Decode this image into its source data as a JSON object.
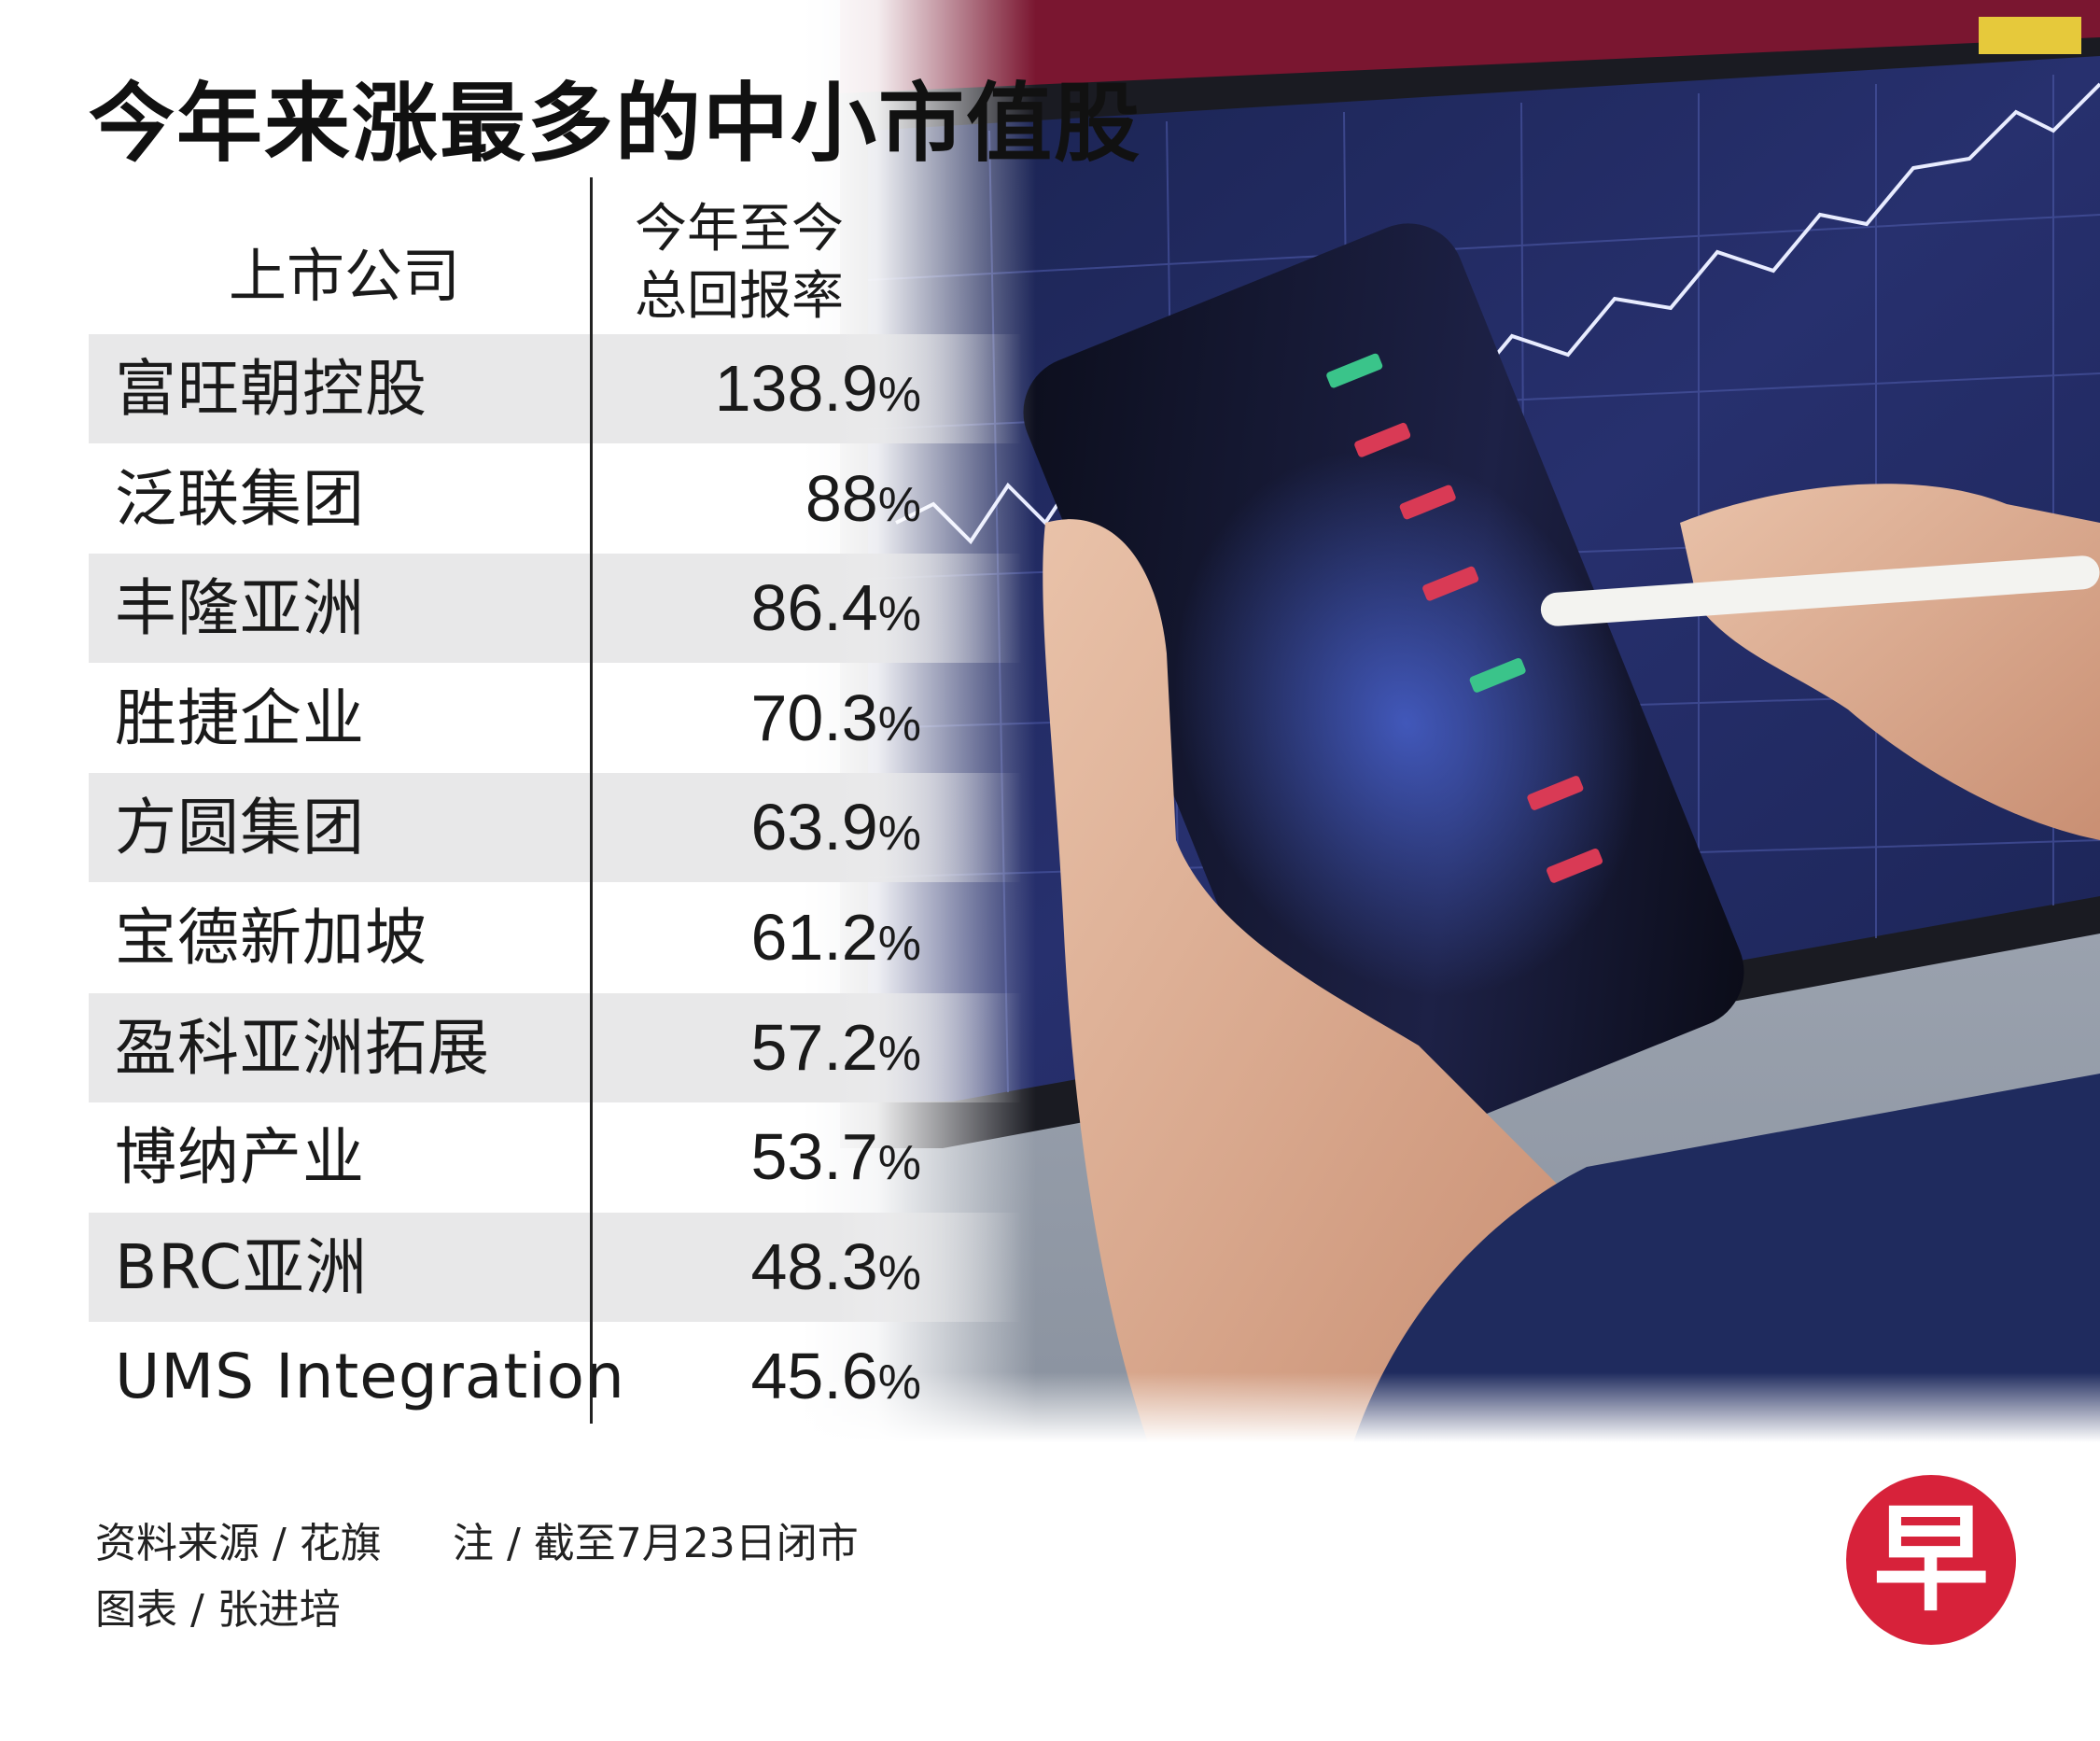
{
  "title": "今年来涨最多的中小市值股",
  "chart_data": {
    "type": "table",
    "columns": [
      "上市公司",
      "今年至今\n总回报率"
    ],
    "header": {
      "company": "上市公司",
      "return_line1": "今年至今",
      "return_line2": "总回报率"
    },
    "rows": [
      {
        "company": "富旺朝控股",
        "value": "138.9%"
      },
      {
        "company": "泛联集团",
        "value": "88%"
      },
      {
        "company": "丰隆亚洲",
        "value": "86.4%"
      },
      {
        "company": "胜捷企业",
        "value": "70.3%"
      },
      {
        "company": "方圆集团",
        "value": "63.9%"
      },
      {
        "company": "宝德新加坡",
        "value": "61.2%"
      },
      {
        "company": "盈科亚洲拓展",
        "value": "57.2%"
      },
      {
        "company": "博纳产业",
        "value": "53.7%"
      },
      {
        "company": "BRC亚洲",
        "value": "48.3%"
      },
      {
        "company": "UMS Integration",
        "value": "45.6%"
      }
    ]
  },
  "footer": {
    "source": "资料来源 / 花旗",
    "note": "注 / 截至7月23日闭市",
    "credit": "图表 / 张进培"
  },
  "logo": {
    "text": "早",
    "color": "#d7223a"
  },
  "colors": {
    "row_shade": "#e8e8e9",
    "text": "#1a1a1a"
  }
}
